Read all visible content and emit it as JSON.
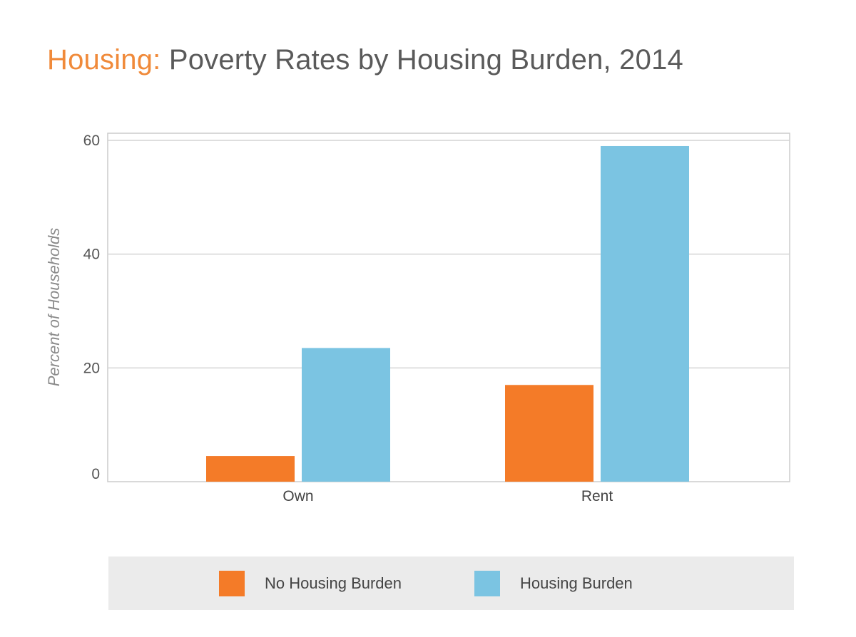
{
  "title": {
    "prefix": "Housing:",
    "main": "Poverty Rates by Housing Burden, 2014"
  },
  "colors": {
    "no_burden": "#f47b28",
    "burden": "#7bc4e2",
    "title_accent": "#f08a3a"
  },
  "chart_data": {
    "type": "bar",
    "categories": [
      "Own",
      "Rent"
    ],
    "series": [
      {
        "name": "No Housing Burden",
        "values": [
          4.5,
          17
        ]
      },
      {
        "name": "Housing Burden",
        "values": [
          23.5,
          59
        ]
      }
    ],
    "ylabel": "Percent of Households",
    "xlabel": "",
    "ylim": [
      0,
      60
    ],
    "yticks": [
      0,
      20,
      40,
      60
    ],
    "grid": true,
    "legend_position": "bottom"
  },
  "legend": {
    "items": [
      "No Housing Burden",
      "Housing Burden"
    ]
  }
}
